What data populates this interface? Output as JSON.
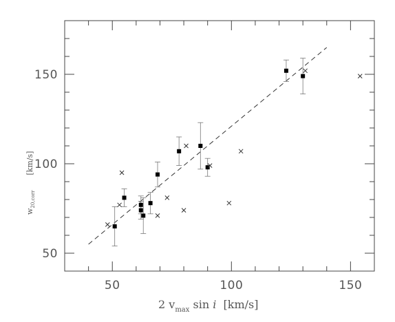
{
  "chart_data": {
    "type": "scatter",
    "xlim": [
      30,
      160
    ],
    "ylim": [
      40,
      180
    ],
    "x_ticks": [
      50,
      100,
      150
    ],
    "y_ticks": [
      50,
      100,
      150
    ],
    "x_minor_step": 10,
    "y_minor_step": 10,
    "xlabel": {
      "pre": "2 v",
      "sub": "max",
      "post": " sin ",
      "italic": "i",
      "unit": "  [km/s]"
    },
    "ylabel": {
      "main": "w",
      "sub": "20,corr",
      "unit": "[km/s]"
    },
    "series": [
      {
        "marker": "square",
        "points": [
          {
            "x": 51,
            "y": 65,
            "err": 11
          },
          {
            "x": 55,
            "y": 81,
            "err": 5
          },
          {
            "x": 62,
            "y": 74,
            "err": 5
          },
          {
            "x": 62,
            "y": 77,
            "err": 5
          },
          {
            "x": 63,
            "y": 71,
            "err": 10
          },
          {
            "x": 66,
            "y": 78,
            "err": 6
          },
          {
            "x": 69,
            "y": 94,
            "err": 7
          },
          {
            "x": 78,
            "y": 107,
            "err": 8
          },
          {
            "x": 87,
            "y": 110,
            "err": 13
          },
          {
            "x": 90,
            "y": 98,
            "err": 5
          },
          {
            "x": 123,
            "y": 152,
            "err": 6
          },
          {
            "x": 130,
            "y": 149,
            "err": 10
          }
        ]
      },
      {
        "marker": "cross",
        "points": [
          {
            "x": 48,
            "y": 66
          },
          {
            "x": 53,
            "y": 77
          },
          {
            "x": 54,
            "y": 95
          },
          {
            "x": 69,
            "y": 71
          },
          {
            "x": 73,
            "y": 81
          },
          {
            "x": 80,
            "y": 74
          },
          {
            "x": 81,
            "y": 110
          },
          {
            "x": 91,
            "y": 99
          },
          {
            "x": 99,
            "y": 78
          },
          {
            "x": 104,
            "y": 107
          },
          {
            "x": 131,
            "y": 152
          },
          {
            "x": 154,
            "y": 149
          }
        ]
      }
    ],
    "fit_line": {
      "style": "dashed",
      "x": [
        40,
        140
      ],
      "y": [
        55,
        165
      ]
    },
    "grid": false,
    "legend": "none"
  }
}
